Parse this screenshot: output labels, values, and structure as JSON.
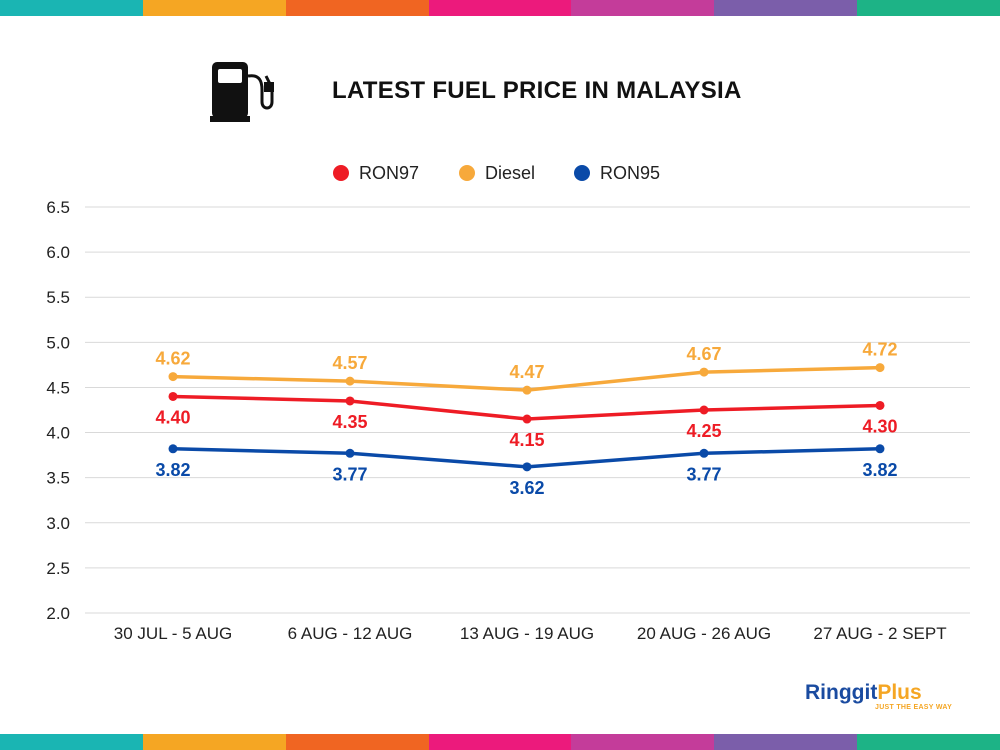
{
  "stripe_colors": [
    "#1ab5b3",
    "#f5a623",
    "#f06522",
    "#ec1a7c",
    "#c43c9a",
    "#7b5eaa",
    "#1db386"
  ],
  "title": "LATEST FUEL PRICE IN MALAYSIA",
  "icon": "fuel-pump-icon",
  "brand": {
    "part1": "Ringgit",
    "part2": "Plus",
    "tagline": "JUST THE EASY WAY",
    "color1": "#1a4ba0",
    "color2": "#f5a623"
  },
  "chart_data": {
    "type": "line",
    "title": "LATEST FUEL PRICE IN MALAYSIA",
    "xlabel": "",
    "ylabel": "",
    "categories": [
      "30 JUL - 5 AUG",
      "6 AUG - 12 AUG",
      "13 AUG - 19 AUG",
      "20 AUG - 26 AUG",
      "27 AUG - 2 SEPT"
    ],
    "ylim": [
      2.0,
      6.5
    ],
    "yticks": [
      "6.5",
      "6.0",
      "5.5",
      "5.0",
      "4.5",
      "4.0",
      "3.5",
      "3.0",
      "2.5",
      "2.0"
    ],
    "grid": true,
    "legend_position": "top-center",
    "series": [
      {
        "name": "RON97",
        "color": "#ee1c25",
        "values": [
          4.4,
          4.35,
          4.15,
          4.25,
          4.3
        ],
        "labels": [
          "4.40",
          "4.35",
          "4.15",
          "4.25",
          "4.30"
        ],
        "label_side": "below"
      },
      {
        "name": "Diesel",
        "color": "#f7a93b",
        "values": [
          4.62,
          4.57,
          4.47,
          4.67,
          4.72
        ],
        "labels": [
          "4.62",
          "4.57",
          "4.47",
          "4.67",
          "4.72"
        ],
        "label_side": "above"
      },
      {
        "name": "RON95",
        "color": "#0a4aa8",
        "values": [
          3.82,
          3.77,
          3.62,
          3.77,
          3.82
        ],
        "labels": [
          "3.82",
          "3.77",
          "3.62",
          "3.77",
          "3.82"
        ],
        "label_side": "below"
      }
    ]
  }
}
